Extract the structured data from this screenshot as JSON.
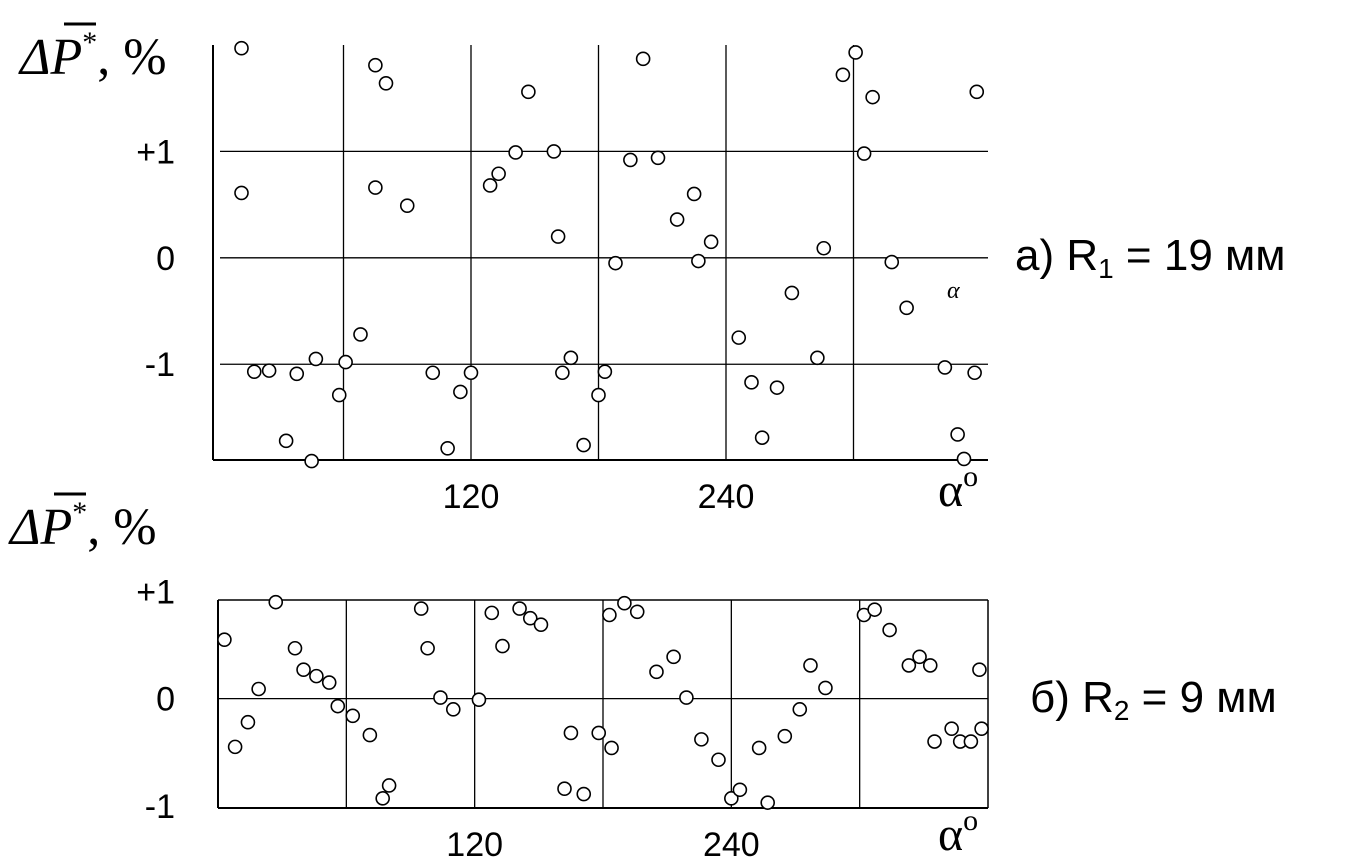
{
  "chart_data": [
    {
      "type": "scatter",
      "caption": "а) R",
      "caption_sub": "1",
      "caption_rest": " = 19 мм",
      "ylabel": "ΔP",
      "ylabel_sup": "*",
      "ylabel_unit": ", %",
      "xlabel": "α",
      "xlabel_sup": "o",
      "annotation": "α",
      "xlim": [
        0,
        360
      ],
      "ylim": [
        -1.9,
        2.0
      ],
      "grid": true,
      "x_ticks": [
        {
          "value": 120,
          "label": "120"
        },
        {
          "value": 240,
          "label": "240"
        }
      ],
      "y_ticks": [
        {
          "value": 1,
          "label": "+1"
        },
        {
          "value": 0,
          "label": "0"
        },
        {
          "value": -1,
          "label": "-1"
        }
      ],
      "points": [
        {
          "x": 12,
          "y": 1.97
        },
        {
          "x": 12,
          "y": 0.61
        },
        {
          "x": 18,
          "y": -1.07
        },
        {
          "x": 25,
          "y": -1.06
        },
        {
          "x": 33,
          "y": -1.72
        },
        {
          "x": 38,
          "y": -1.09
        },
        {
          "x": 45,
          "y": -1.91
        },
        {
          "x": 47,
          "y": -0.95
        },
        {
          "x": 58,
          "y": -1.29
        },
        {
          "x": 61,
          "y": -0.98
        },
        {
          "x": 68,
          "y": -0.72
        },
        {
          "x": 75,
          "y": 1.81
        },
        {
          "x": 75,
          "y": 0.66
        },
        {
          "x": 80,
          "y": 1.64
        },
        {
          "x": 90,
          "y": 0.49
        },
        {
          "x": 102,
          "y": -1.08
        },
        {
          "x": 109,
          "y": -1.79
        },
        {
          "x": 115,
          "y": -1.26
        },
        {
          "x": 120,
          "y": -1.08
        },
        {
          "x": 129,
          "y": 0.68
        },
        {
          "x": 133,
          "y": 0.79
        },
        {
          "x": 141,
          "y": 0.99
        },
        {
          "x": 147,
          "y": 1.56
        },
        {
          "x": 159,
          "y": 1.0
        },
        {
          "x": 161,
          "y": 0.2
        },
        {
          "x": 163,
          "y": -1.08
        },
        {
          "x": 167,
          "y": -0.94
        },
        {
          "x": 173,
          "y": -1.76
        },
        {
          "x": 180,
          "y": -1.29
        },
        {
          "x": 183,
          "y": -1.07
        },
        {
          "x": 188,
          "y": -0.05
        },
        {
          "x": 195,
          "y": 0.92
        },
        {
          "x": 201,
          "y": 1.87
        },
        {
          "x": 208,
          "y": 0.94
        },
        {
          "x": 217,
          "y": 0.36
        },
        {
          "x": 225,
          "y": 0.6
        },
        {
          "x": 227,
          "y": -0.03
        },
        {
          "x": 233,
          "y": 0.15
        },
        {
          "x": 246,
          "y": -0.75
        },
        {
          "x": 252,
          "y": -1.17
        },
        {
          "x": 257,
          "y": -1.69
        },
        {
          "x": 264,
          "y": -1.22
        },
        {
          "x": 271,
          "y": -0.33
        },
        {
          "x": 283,
          "y": -0.94
        },
        {
          "x": 286,
          "y": 0.09
        },
        {
          "x": 295,
          "y": 1.72
        },
        {
          "x": 301,
          "y": 1.93
        },
        {
          "x": 305,
          "y": 0.98
        },
        {
          "x": 309,
          "y": 1.51
        },
        {
          "x": 318,
          "y": -0.04
        },
        {
          "x": 325,
          "y": -0.47
        },
        {
          "x": 343,
          "y": -1.03
        },
        {
          "x": 349,
          "y": -1.66
        },
        {
          "x": 352,
          "y": -1.89
        },
        {
          "x": 357,
          "y": -1.08
        },
        {
          "x": 358,
          "y": 1.56
        }
      ]
    },
    {
      "type": "scatter",
      "caption": "б) R",
      "caption_sub": "2",
      "caption_rest": " = 9 мм",
      "ylabel": "ΔP",
      "ylabel_sup": "*",
      "ylabel_unit": ", %",
      "xlabel": "α",
      "xlabel_sup": "o",
      "xlim": [
        0,
        360
      ],
      "ylim": [
        -1.02,
        0.92
      ],
      "grid": true,
      "x_ticks": [
        {
          "value": 120,
          "label": "120"
        },
        {
          "value": 240,
          "label": "240"
        }
      ],
      "y_ticks": [
        {
          "value": 1,
          "label": "+1"
        },
        {
          "value": 0,
          "label": "0"
        },
        {
          "value": -1,
          "label": "-1"
        }
      ],
      "points": [
        {
          "x": 3,
          "y": 0.55
        },
        {
          "x": 8,
          "y": -0.45
        },
        {
          "x": 14,
          "y": -0.22
        },
        {
          "x": 19,
          "y": 0.09
        },
        {
          "x": 27,
          "y": 0.9
        },
        {
          "x": 36,
          "y": 0.47
        },
        {
          "x": 40,
          "y": 0.27
        },
        {
          "x": 46,
          "y": 0.21
        },
        {
          "x": 52,
          "y": 0.15
        },
        {
          "x": 56,
          "y": -0.07
        },
        {
          "x": 63,
          "y": -0.16
        },
        {
          "x": 71,
          "y": -0.34
        },
        {
          "x": 77,
          "y": -0.93
        },
        {
          "x": 80,
          "y": -0.81
        },
        {
          "x": 95,
          "y": 0.84
        },
        {
          "x": 98,
          "y": 0.47
        },
        {
          "x": 104,
          "y": 0.01
        },
        {
          "x": 110,
          "y": -0.1
        },
        {
          "x": 122,
          "y": -0.01
        },
        {
          "x": 128,
          "y": 0.8
        },
        {
          "x": 133,
          "y": 0.49
        },
        {
          "x": 141,
          "y": 0.84
        },
        {
          "x": 146,
          "y": 0.75
        },
        {
          "x": 151,
          "y": 0.69
        },
        {
          "x": 162,
          "y": -0.84
        },
        {
          "x": 165,
          "y": -0.32
        },
        {
          "x": 171,
          "y": -0.89
        },
        {
          "x": 178,
          "y": -0.32
        },
        {
          "x": 183,
          "y": 0.78
        },
        {
          "x": 184,
          "y": -0.46
        },
        {
          "x": 190,
          "y": 0.89
        },
        {
          "x": 196,
          "y": 0.81
        },
        {
          "x": 205,
          "y": 0.25
        },
        {
          "x": 213,
          "y": 0.39
        },
        {
          "x": 219,
          "y": 0.01
        },
        {
          "x": 226,
          "y": -0.38
        },
        {
          "x": 234,
          "y": -0.57
        },
        {
          "x": 240,
          "y": -0.93
        },
        {
          "x": 244,
          "y": -0.85
        },
        {
          "x": 253,
          "y": -0.46
        },
        {
          "x": 257,
          "y": -0.97
        },
        {
          "x": 265,
          "y": -0.35
        },
        {
          "x": 272,
          "y": -0.1
        },
        {
          "x": 277,
          "y": 0.31
        },
        {
          "x": 284,
          "y": 0.1
        },
        {
          "x": 302,
          "y": 0.78
        },
        {
          "x": 307,
          "y": 0.83
        },
        {
          "x": 314,
          "y": 0.64
        },
        {
          "x": 323,
          "y": 0.31
        },
        {
          "x": 328,
          "y": 0.39
        },
        {
          "x": 333,
          "y": 0.31
        },
        {
          "x": 335,
          "y": -0.4
        },
        {
          "x": 343,
          "y": -0.28
        },
        {
          "x": 347,
          "y": -0.4
        },
        {
          "x": 352,
          "y": -0.4
        },
        {
          "x": 356,
          "y": 0.27
        },
        {
          "x": 357,
          "y": -0.28
        }
      ]
    }
  ]
}
